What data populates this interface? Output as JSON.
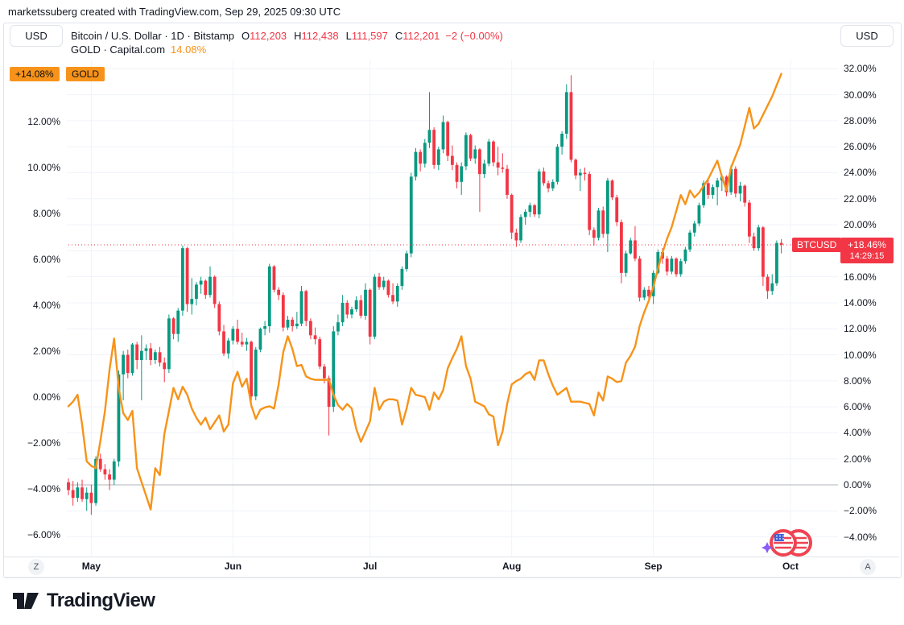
{
  "page": {
    "attribution": "marketssuberg created with TradingView.com, Sep 29, 2025 09:30 UTC"
  },
  "header": {
    "left_scale_currency": "USD",
    "right_scale_currency": "USD",
    "series_title": "Bitcoin / U.S. Dollar · 1D · Bitstamp",
    "ohlc": {
      "o_label": "O",
      "o": "112,203",
      "h_label": "H",
      "h": "112,438",
      "l_label": "L",
      "l": "111,597",
      "c_label": "C",
      "c": "112,201",
      "change": "−2 (−0.00%)"
    },
    "compare_title": "GOLD · Capital.com",
    "compare_value": "14.08%"
  },
  "badges": {
    "gold_value": "+14.08%",
    "gold_symbol": "GOLD",
    "btc_symbol": "BTCUSD",
    "btc_value": "+18.46%",
    "btc_countdown": "14:29:15"
  },
  "colors": {
    "up": "#089981",
    "down": "#F23645",
    "gold_line": "#F7931A",
    "text": "#131722",
    "grid": "#F0F3FA",
    "zero_line": "#B2B5BE",
    "border": "#E0E3EB",
    "badge_red": "#F23645",
    "badge_orange": "#F7931A"
  },
  "axes": {
    "left_percent_labels": [
      "12.00%",
      "10.00%",
      "8.00%",
      "6.00%",
      "4.00%",
      "2.00%",
      "0.00%",
      "−2.00%",
      "−4.00%",
      "−6.00%"
    ],
    "left_percent_values": [
      12,
      10,
      8,
      6,
      4,
      2,
      0,
      -2,
      -4,
      -6
    ],
    "right_percent_labels": [
      "32.00%",
      "30.00%",
      "28.00%",
      "26.00%",
      "24.00%",
      "22.00%",
      "20.00%",
      "16.00%",
      "14.00%",
      "12.00%",
      "10.00%",
      "8.00%",
      "6.00%",
      "4.00%",
      "2.00%",
      "0.00%",
      "−2.00%",
      "−4.00%"
    ],
    "right_percent_values": [
      32,
      30,
      28,
      26,
      24,
      22,
      20,
      16,
      14,
      12,
      10,
      8,
      6,
      4,
      2,
      0,
      -2,
      -4
    ]
  },
  "chart_data": {
    "type": "candlestick_with_compare_line",
    "title": "Bitcoin / U.S. Dollar vs GOLD, percent change",
    "interval": "1D",
    "start_date": "2025-04-26",
    "btc_series_axis": "right",
    "gold_series_axis": "left",
    "btc_last_close_pct": 18.46,
    "gold_last_pct": 14.08,
    "months": [
      {
        "label": "May",
        "day_index": 5
      },
      {
        "label": "Jun",
        "day_index": 36
      },
      {
        "label": "Jul",
        "day_index": 66
      },
      {
        "label": "Aug",
        "day_index": 97
      },
      {
        "label": "Sep",
        "day_index": 128
      },
      {
        "label": "Oct",
        "day_index": 158
      }
    ],
    "candles_pct_right_axis": [
      [
        0.2,
        0.5,
        -0.8,
        -0.4
      ],
      [
        -0.4,
        0.3,
        -1.6,
        -1.0
      ],
      [
        -1.0,
        0.2,
        -1.3,
        -0.2
      ],
      [
        -0.2,
        0.4,
        -1.3,
        -1.1
      ],
      [
        -1.1,
        -0.2,
        -2.0,
        -0.6
      ],
      [
        -0.6,
        0.0,
        -2.3,
        -1.4
      ],
      [
        -1.4,
        2.2,
        -1.6,
        2.0
      ],
      [
        2.0,
        2.4,
        1.0,
        1.2
      ],
      [
        1.2,
        1.6,
        0.4,
        0.8
      ],
      [
        0.8,
        1.2,
        -0.4,
        0.4
      ],
      [
        0.4,
        2.0,
        0.0,
        1.8
      ],
      [
        1.8,
        8.8,
        1.4,
        8.5
      ],
      [
        8.5,
        10.3,
        6.5,
        10.0
      ],
      [
        10.0,
        10.4,
        8.2,
        8.6
      ],
      [
        8.6,
        10.9,
        8.4,
        10.8
      ],
      [
        10.8,
        11.0,
        8.9,
        9.6
      ],
      [
        9.6,
        11.5,
        6.5,
        10.3
      ],
      [
        10.3,
        10.8,
        9.6,
        10.5
      ],
      [
        10.5,
        10.9,
        9.2,
        9.6
      ],
      [
        9.6,
        10.4,
        9.3,
        10.2
      ],
      [
        10.2,
        10.6,
        9.1,
        9.4
      ],
      [
        9.4,
        9.8,
        7.9,
        8.9
      ],
      [
        8.9,
        13.1,
        8.6,
        12.8
      ],
      [
        12.8,
        12.9,
        11.2,
        11.6
      ],
      [
        11.6,
        13.6,
        11.0,
        13.4
      ],
      [
        13.4,
        18.4,
        13.0,
        18.2
      ],
      [
        18.2,
        18.3,
        13.3,
        13.9
      ],
      [
        13.9,
        15.9,
        13.1,
        14.3
      ],
      [
        14.3,
        15.6,
        13.8,
        15.4
      ],
      [
        15.4,
        16.0,
        14.7,
        15.7
      ],
      [
        15.7,
        15.8,
        14.3,
        14.6
      ],
      [
        14.6,
        16.8,
        14.4,
        16.0
      ],
      [
        16.0,
        16.1,
        13.6,
        13.9
      ],
      [
        13.9,
        14.1,
        11.5,
        11.8
      ],
      [
        11.8,
        12.3,
        9.9,
        10.1
      ],
      [
        10.1,
        11.3,
        9.7,
        11.1
      ],
      [
        11.1,
        12.2,
        10.8,
        12.0
      ],
      [
        12.0,
        12.7,
        10.8,
        11.0
      ],
      [
        11.0,
        11.7,
        10.6,
        10.8
      ],
      [
        10.8,
        11.3,
        10.3,
        11.0
      ],
      [
        11.0,
        11.1,
        5.9,
        6.8
      ],
      [
        6.8,
        10.6,
        6.5,
        10.4
      ],
      [
        10.4,
        12.1,
        10.2,
        12.0
      ],
      [
        12.0,
        12.6,
        11.5,
        12.2
      ],
      [
        12.2,
        17.0,
        11.7,
        16.8
      ],
      [
        16.8,
        16.9,
        14.8,
        15.0
      ],
      [
        15.0,
        15.2,
        14.2,
        14.6
      ],
      [
        14.6,
        14.8,
        11.8,
        12.1
      ],
      [
        12.1,
        13.0,
        11.9,
        12.7
      ],
      [
        12.7,
        12.9,
        11.8,
        12.2
      ],
      [
        12.2,
        13.3,
        12.0,
        12.4
      ],
      [
        12.4,
        15.3,
        12.2,
        14.9
      ],
      [
        14.9,
        15.0,
        12.2,
        12.6
      ],
      [
        12.6,
        12.8,
        11.2,
        11.5
      ],
      [
        11.5,
        12.1,
        10.8,
        11.2
      ],
      [
        11.2,
        11.4,
        8.9,
        9.1
      ],
      [
        9.1,
        9.3,
        7.8,
        8.2
      ],
      [
        8.2,
        8.4,
        3.8,
        6.0
      ],
      [
        6.0,
        12.2,
        5.6,
        11.8
      ],
      [
        11.8,
        13.1,
        11.5,
        12.5
      ],
      [
        12.5,
        14.6,
        12.2,
        14.0
      ],
      [
        14.0,
        14.2,
        12.8,
        13.1
      ],
      [
        13.1,
        13.7,
        12.8,
        13.5
      ],
      [
        13.5,
        14.5,
        13.3,
        14.2
      ],
      [
        14.2,
        14.6,
        12.8,
        13.0
      ],
      [
        13.0,
        15.5,
        12.7,
        15.0
      ],
      [
        15.0,
        15.1,
        10.8,
        11.4
      ],
      [
        11.4,
        16.2,
        11.2,
        16.0
      ],
      [
        16.0,
        16.3,
        15.0,
        15.2
      ],
      [
        15.2,
        16.0,
        15.0,
        15.7
      ],
      [
        15.7,
        15.8,
        14.4,
        14.6
      ],
      [
        14.6,
        15.5,
        13.9,
        14.1
      ],
      [
        14.1,
        15.5,
        13.7,
        15.3
      ],
      [
        15.3,
        16.8,
        15.0,
        16.6
      ],
      [
        16.6,
        18.0,
        16.4,
        17.8
      ],
      [
        17.8,
        24.0,
        17.5,
        23.7
      ],
      [
        23.7,
        25.9,
        23.4,
        25.6
      ],
      [
        25.6,
        25.8,
        24.1,
        24.7
      ],
      [
        24.7,
        26.6,
        24.4,
        26.3
      ],
      [
        26.3,
        30.2,
        25.9,
        27.3
      ],
      [
        27.3,
        27.5,
        24.3,
        24.6
      ],
      [
        24.6,
        26.0,
        24.2,
        25.8
      ],
      [
        25.8,
        28.4,
        25.5,
        27.9
      ],
      [
        27.9,
        28.0,
        24.9,
        25.3
      ],
      [
        25.3,
        26.1,
        24.2,
        24.6
      ],
      [
        24.6,
        24.8,
        22.8,
        23.3
      ],
      [
        23.3,
        24.8,
        22.3,
        24.5
      ],
      [
        24.5,
        27.1,
        24.2,
        26.9
      ],
      [
        26.9,
        27.0,
        24.9,
        25.1
      ],
      [
        25.1,
        26.1,
        24.7,
        25.8
      ],
      [
        25.8,
        25.9,
        21.0,
        23.9
      ],
      [
        23.9,
        25.0,
        23.6,
        24.7
      ],
      [
        24.7,
        26.6,
        24.5,
        26.4
      ],
      [
        26.4,
        26.5,
        24.5,
        24.8
      ],
      [
        24.8,
        26.0,
        23.8,
        24.4
      ],
      [
        24.4,
        25.5,
        24.0,
        24.3
      ],
      [
        24.3,
        24.6,
        22.0,
        22.3
      ],
      [
        22.3,
        22.4,
        18.9,
        19.4
      ],
      [
        19.4,
        19.7,
        18.3,
        18.8
      ],
      [
        18.8,
        20.8,
        18.6,
        20.6
      ],
      [
        20.6,
        21.2,
        20.0,
        21.0
      ],
      [
        21.0,
        21.7,
        20.6,
        21.5
      ],
      [
        21.5,
        21.6,
        20.6,
        20.8
      ],
      [
        20.8,
        24.3,
        20.5,
        24.1
      ],
      [
        24.1,
        24.4,
        23.0,
        23.2
      ],
      [
        23.2,
        23.4,
        22.5,
        22.8
      ],
      [
        22.8,
        23.5,
        22.6,
        23.3
      ],
      [
        23.3,
        26.2,
        23.1,
        26.0
      ],
      [
        26.0,
        27.2,
        25.4,
        27.0
      ],
      [
        27.0,
        30.8,
        26.6,
        30.2
      ],
      [
        30.2,
        31.5,
        24.8,
        25.0
      ],
      [
        25.0,
        25.1,
        23.5,
        23.8
      ],
      [
        23.8,
        24.3,
        22.6,
        24.0
      ],
      [
        24.0,
        24.4,
        23.4,
        23.9
      ],
      [
        23.9,
        24.1,
        19.2,
        19.6
      ],
      [
        19.6,
        19.8,
        18.4,
        19.0
      ],
      [
        19.0,
        21.3,
        18.8,
        21.1
      ],
      [
        21.1,
        21.4,
        19.0,
        19.3
      ],
      [
        19.3,
        23.6,
        17.9,
        23.4
      ],
      [
        23.4,
        23.5,
        21.9,
        22.1
      ],
      [
        22.1,
        22.3,
        19.9,
        20.2
      ],
      [
        20.2,
        20.4,
        15.5,
        16.3
      ],
      [
        16.3,
        18.0,
        16.0,
        17.8
      ],
      [
        17.8,
        19.0,
        17.7,
        18.8
      ],
      [
        18.8,
        19.9,
        17.2,
        17.4
      ],
      [
        17.4,
        17.6,
        14.1,
        14.4
      ],
      [
        14.4,
        15.2,
        14.2,
        15.0
      ],
      [
        15.0,
        15.3,
        14.3,
        14.5
      ],
      [
        14.5,
        16.5,
        13.9,
        16.3
      ],
      [
        16.3,
        18.1,
        16.2,
        17.9
      ],
      [
        17.9,
        18.2,
        17.0,
        17.4
      ],
      [
        17.4,
        17.6,
        16.1,
        16.4
      ],
      [
        16.4,
        17.6,
        16.2,
        17.4
      ],
      [
        17.4,
        17.5,
        16.0,
        16.2
      ],
      [
        16.2,
        17.4,
        16.0,
        17.2
      ],
      [
        17.2,
        18.3,
        17.0,
        18.1
      ],
      [
        18.1,
        19.6,
        17.9,
        19.4
      ],
      [
        19.4,
        20.3,
        19.1,
        20.1
      ],
      [
        20.1,
        21.7,
        19.9,
        21.5
      ],
      [
        21.5,
        23.4,
        21.3,
        23.2
      ],
      [
        23.2,
        23.5,
        22.0,
        22.3
      ],
      [
        22.3,
        23.1,
        22.0,
        22.9
      ],
      [
        22.9,
        23.6,
        21.5,
        23.4
      ],
      [
        23.4,
        23.9,
        22.6,
        23.7
      ],
      [
        23.7,
        23.8,
        22.2,
        22.5
      ],
      [
        22.5,
        24.6,
        22.3,
        24.3
      ],
      [
        24.3,
        24.5,
        22.1,
        22.4
      ],
      [
        22.4,
        23.3,
        21.8,
        23.0
      ],
      [
        23.0,
        23.1,
        21.4,
        21.7
      ],
      [
        21.7,
        21.9,
        18.6,
        19.1
      ],
      [
        19.1,
        19.4,
        18.0,
        18.2
      ],
      [
        18.2,
        20.0,
        18.0,
        19.8
      ],
      [
        19.8,
        19.9,
        15.3,
        16.0
      ],
      [
        16.0,
        16.2,
        14.3,
        14.9
      ],
      [
        14.9,
        16.2,
        14.6,
        15.5
      ],
      [
        15.5,
        18.8,
        15.3,
        18.6
      ],
      [
        18.6,
        18.9,
        17.8,
        18.46
      ]
    ],
    "gold_pct_left_axis": [
      -0.4,
      -0.2,
      0.1,
      -1.2,
      -2.8,
      -3.0,
      -3.1,
      -1.9,
      -0.6,
      1.2,
      2.55,
      0.4,
      -0.7,
      -1.0,
      -0.6,
      -3.1,
      -3.7,
      -4.3,
      -4.9,
      -3.1,
      -3.4,
      -1.6,
      -0.6,
      0.4,
      -0.1,
      0.45,
      0.1,
      -0.5,
      -0.9,
      -1.2,
      -0.9,
      -1.4,
      -1.1,
      -0.8,
      -1.5,
      -1.2,
      0.6,
      1.1,
      0.45,
      0.8,
      -0.35,
      -0.95,
      -0.55,
      -0.45,
      -0.4,
      -0.5,
      0.55,
      1.95,
      2.65,
      2.1,
      1.35,
      1.4,
      0.9,
      0.8,
      0.75,
      0.75,
      0.75,
      0.75,
      0.1,
      -0.35,
      -0.55,
      -0.3,
      -0.5,
      -1.4,
      -1.95,
      -1.5,
      -1.05,
      0.4,
      -0.55,
      -0.2,
      -0.1,
      -0.1,
      -0.15,
      -1.2,
      -0.5,
      0.4,
      0.1,
      0.05,
      0.0,
      -0.55,
      0.2,
      -0.1,
      0.3,
      1.25,
      1.7,
      2.1,
      2.65,
      1.35,
      0.8,
      -0.2,
      -0.3,
      -0.4,
      -0.75,
      -0.85,
      -2.1,
      -1.5,
      -0.3,
      0.55,
      0.7,
      0.8,
      1.0,
      1.1,
      0.75,
      1.6,
      1.6,
      1.0,
      0.5,
      0.1,
      0.25,
      0.4,
      -0.2,
      -0.2,
      -0.2,
      -0.25,
      -0.3,
      -0.8,
      0.2,
      -0.15,
      0.9,
      0.8,
      0.65,
      0.7,
      1.5,
      1.8,
      2.2,
      3.1,
      3.7,
      4.2,
      4.8,
      5.6,
      6.3,
      6.9,
      7.4,
      8.1,
      8.8,
      8.4,
      9.0,
      8.7,
      8.9,
      9.2,
      9.5,
      9.9,
      10.3,
      9.6,
      9.0,
      10.0,
      10.5,
      11.0,
      11.8,
      12.6,
      11.7,
      11.9,
      12.3,
      12.7,
      13.1,
      13.6,
      14.08
    ]
  },
  "footer": {
    "z_button": "Z",
    "a_button": "A",
    "logo_text": "TradingView"
  }
}
